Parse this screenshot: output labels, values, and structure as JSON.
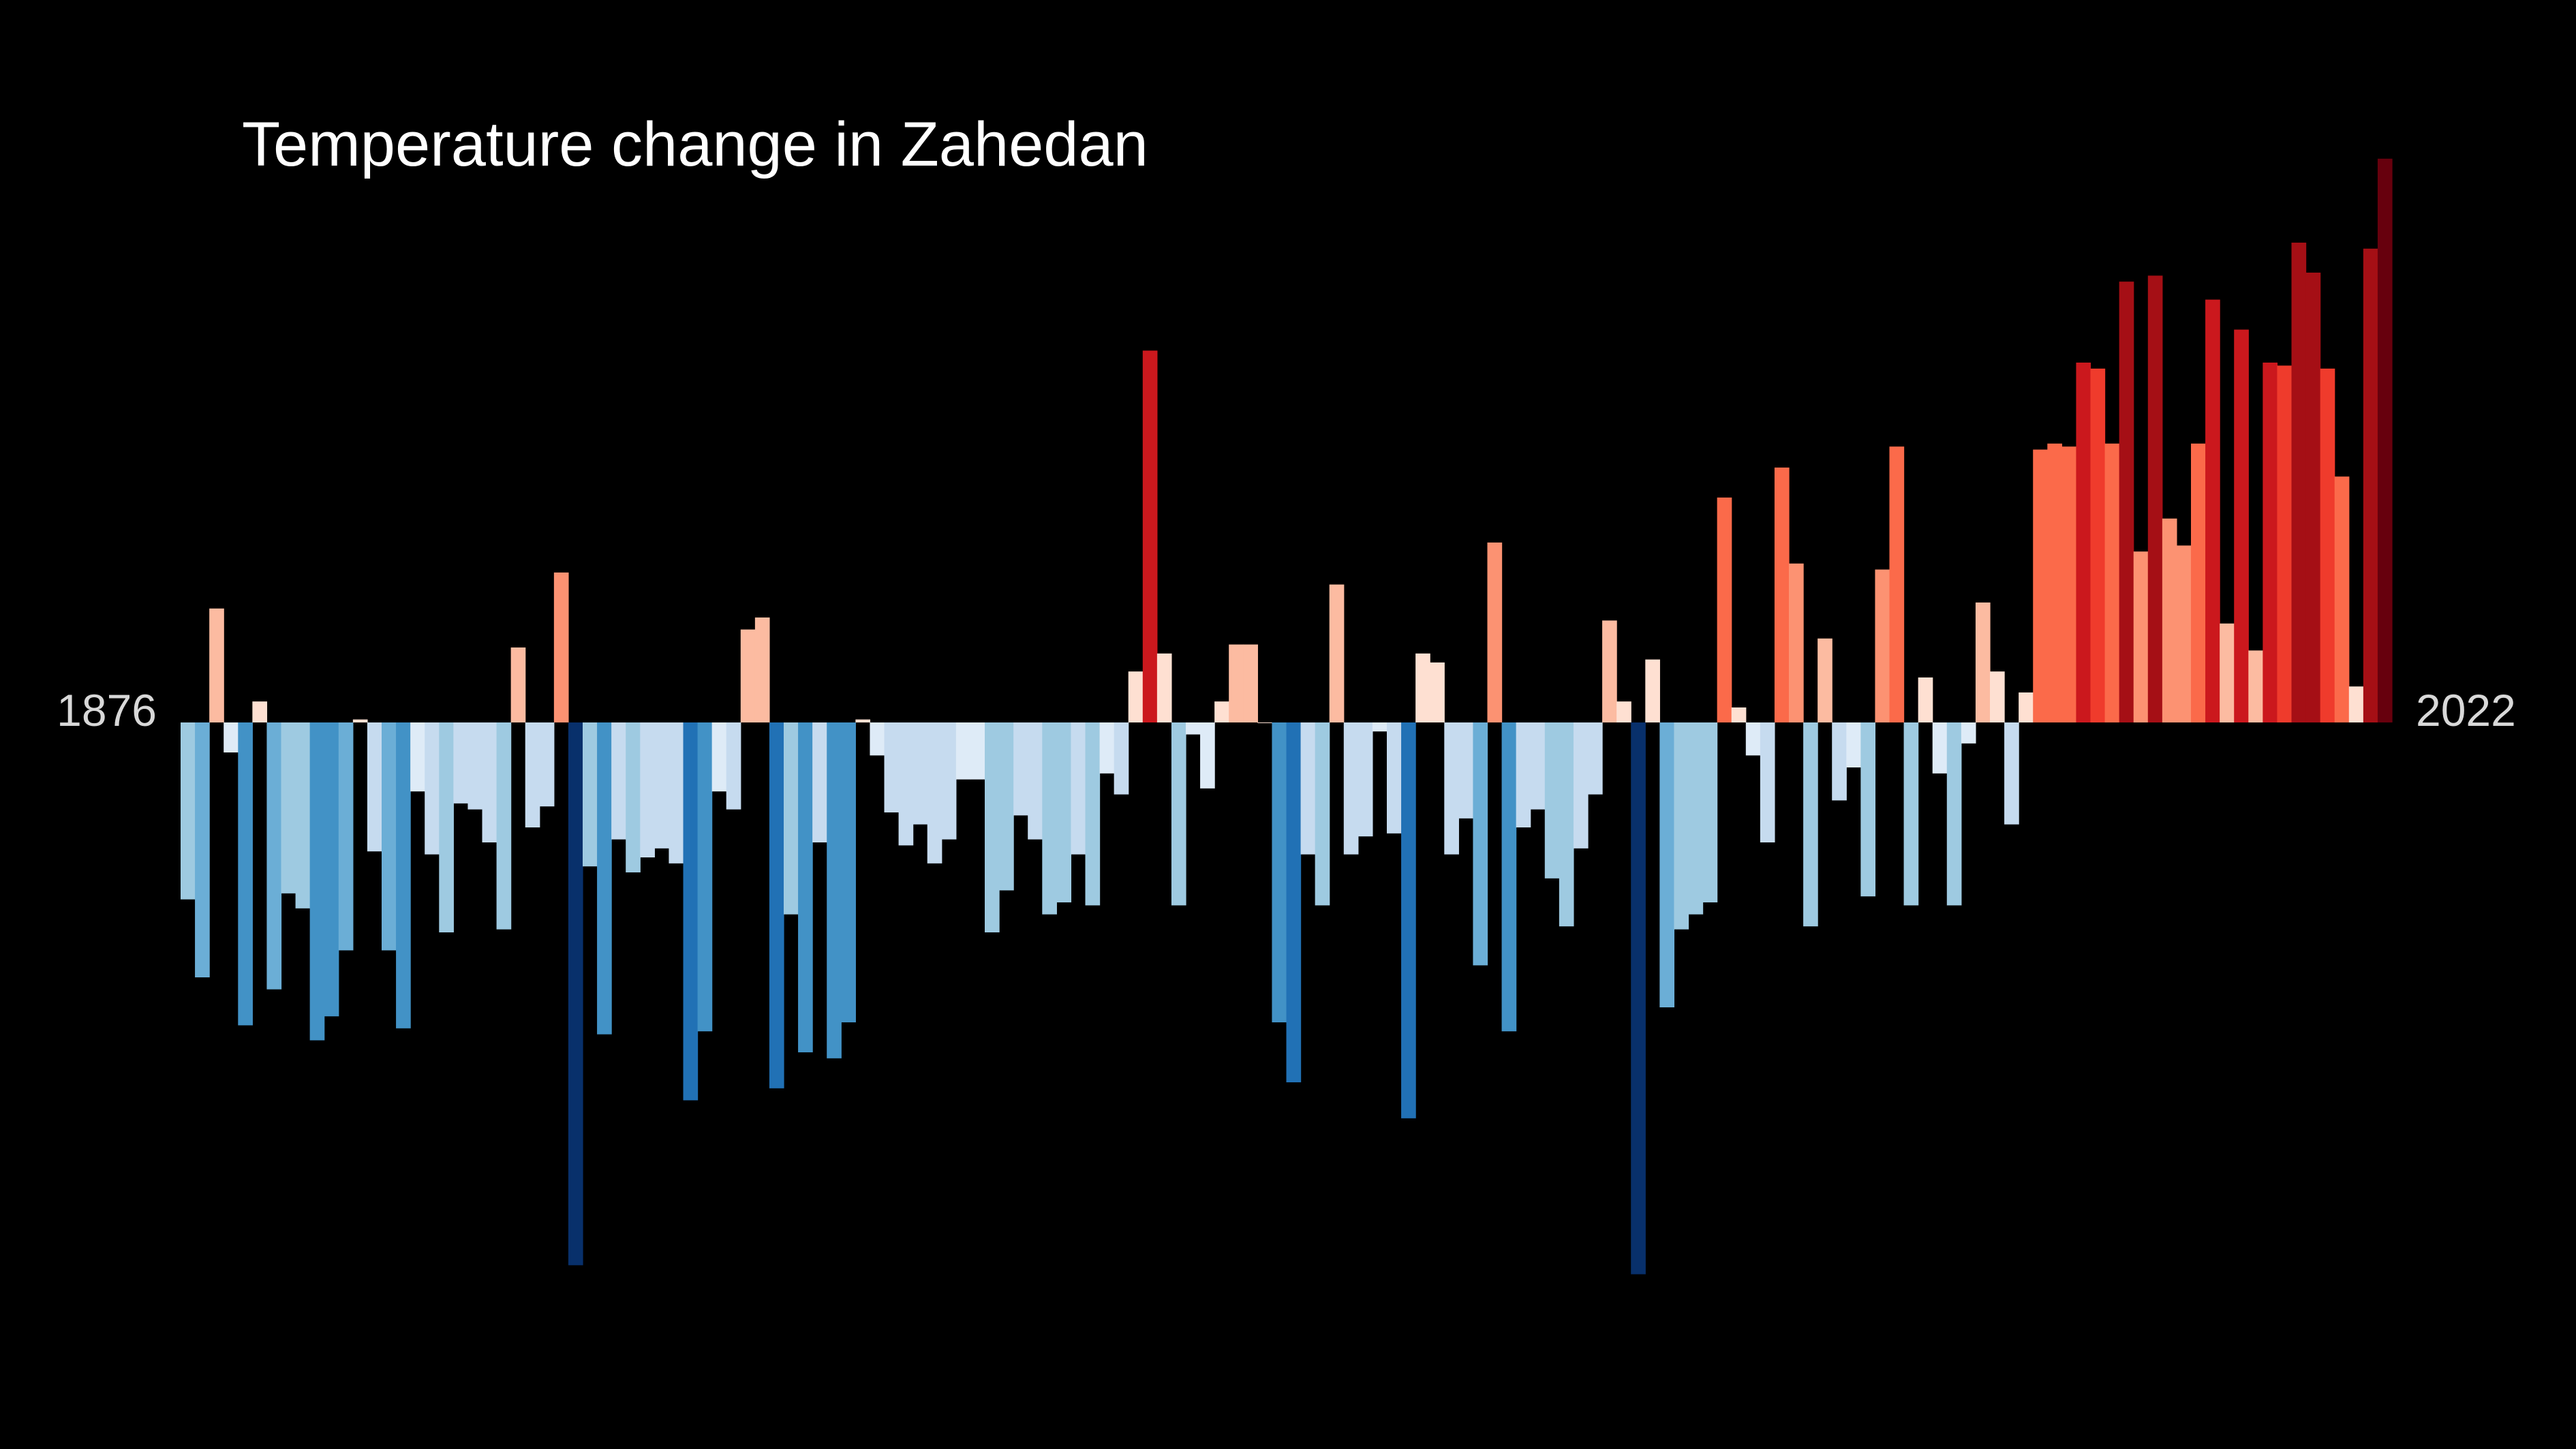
{
  "chart_data": {
    "type": "bar",
    "title": "Temperature change in Zahedan",
    "start_label": "1876",
    "end_label": "2022",
    "x_start": 1876,
    "x_end": 2022,
    "ylim": [
      -1.74,
      1.8
    ],
    "grid": false,
    "legend": "none",
    "values": [
      -0.59,
      -0.85,
      0.38,
      -0.1,
      -1.01,
      0.07,
      -0.89,
      -0.57,
      -0.62,
      -1.06,
      -0.98,
      -0.76,
      0.01,
      -0.43,
      -0.76,
      -1.02,
      -0.23,
      -0.44,
      -0.7,
      -0.27,
      -0.29,
      -0.4,
      -0.69,
      0.25,
      -0.35,
      -0.28,
      0.5,
      -1.81,
      -0.48,
      -1.04,
      -0.39,
      -0.5,
      -0.45,
      -0.42,
      -0.47,
      -1.26,
      -1.03,
      -0.23,
      -0.29,
      0.31,
      0.35,
      -1.22,
      -0.64,
      -1.1,
      -0.4,
      -1.12,
      -1.0,
      0.01,
      -0.11,
      -0.3,
      -0.41,
      -0.34,
      -0.47,
      -0.39,
      -0.19,
      -0.19,
      -0.7,
      -0.56,
      -0.31,
      -0.39,
      -0.64,
      -0.6,
      -0.44,
      -0.61,
      -0.17,
      -0.24,
      0.17,
      1.24,
      0.23,
      -0.61,
      -0.04,
      -0.22,
      0.07,
      0.26,
      0.26,
      0.0,
      -1.0,
      -1.2,
      -0.44,
      -0.61,
      0.46,
      -0.44,
      -0.38,
      -0.03,
      -0.37,
      -1.32,
      0.23,
      0.2,
      -0.44,
      -0.32,
      -0.81,
      0.6,
      -1.03,
      -0.35,
      -0.29,
      -0.52,
      -0.68,
      -0.42,
      -0.24,
      0.34,
      0.07,
      -1.84,
      0.21,
      -0.95,
      -0.69,
      -0.64,
      -0.6,
      0.75,
      0.05,
      -0.11,
      -0.4,
      0.85,
      0.53,
      -0.68,
      0.28,
      -0.26,
      -0.15,
      -0.58,
      0.51,
      0.92,
      -0.61,
      0.15,
      -0.17,
      -0.61,
      -0.07,
      0.4,
      0.17,
      -0.34,
      0.1,
      0.91,
      0.93,
      0.92,
      1.2,
      1.18,
      0.93,
      1.47,
      0.57,
      1.49,
      0.68,
      0.59,
      0.93,
      1.41,
      0.33,
      1.31,
      0.24,
      1.2,
      1.19,
      1.6,
      1.5,
      1.18,
      0.82,
      0.12,
      1.58,
      1.88
    ]
  }
}
